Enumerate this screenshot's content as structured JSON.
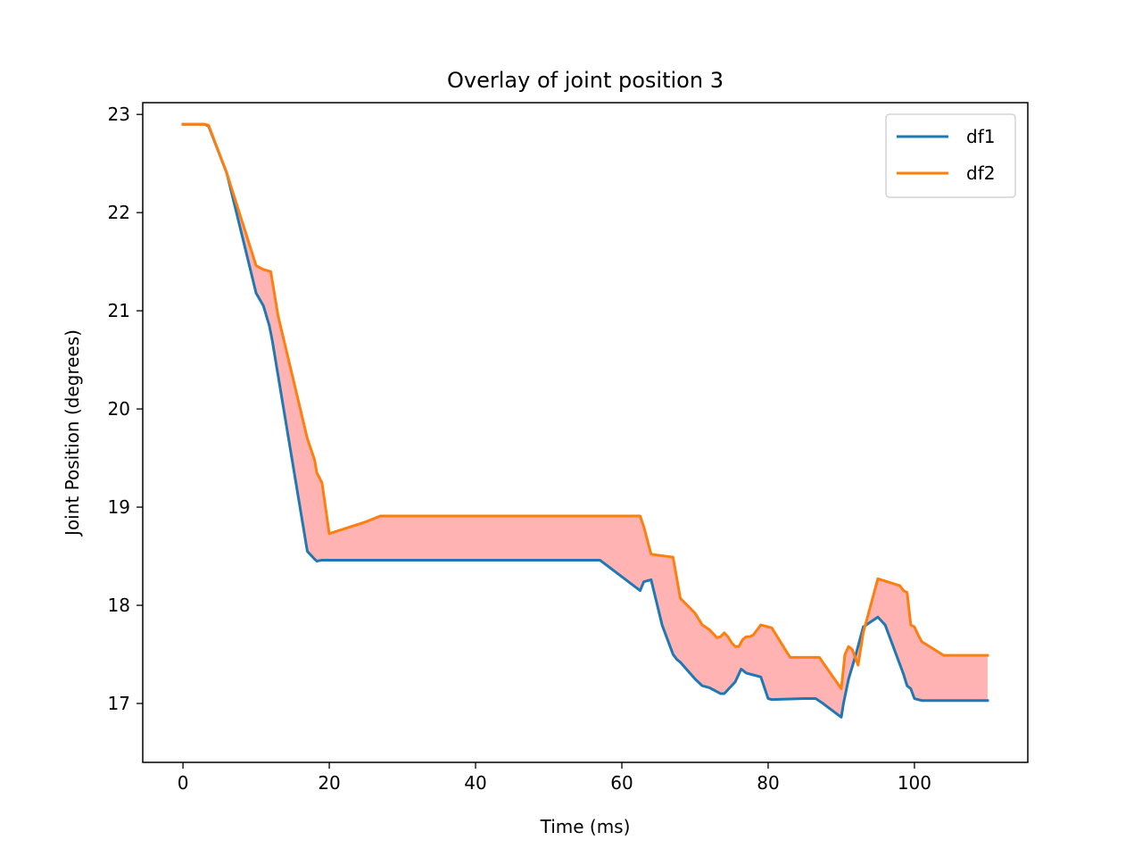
{
  "chart_data": {
    "type": "line",
    "title": "Overlay of joint position 3",
    "xlabel": "Time (ms)",
    "ylabel": "Joint Position (degrees)",
    "xlim": [
      -5.5,
      115.5
    ],
    "ylim": [
      16.4,
      23.12
    ],
    "xticks": [
      0,
      20,
      40,
      60,
      80,
      100
    ],
    "yticks": [
      17,
      18,
      19,
      20,
      21,
      22,
      23
    ],
    "grid": false,
    "legend_position": "top-right",
    "fill_between": {
      "color": "#ffb3b3",
      "between": [
        "df1",
        "df2"
      ]
    },
    "series": [
      {
        "name": "df1",
        "color": "#1f77b4",
        "x": [
          0,
          3,
          3.5,
          6,
          10,
          11,
          11.8,
          12.2,
          17,
          18,
          18.3,
          19,
          25,
          35,
          45,
          57,
          62.5,
          63,
          64,
          65.5,
          66,
          67,
          67.5,
          68,
          70,
          71,
          71.5,
          72,
          72.5,
          73,
          73.5,
          74,
          74.5,
          75,
          75.5,
          76,
          76.3,
          76.5,
          77,
          77.5,
          78,
          78.5,
          79,
          80,
          80.5,
          85,
          86,
          86.5,
          87.5,
          90,
          90.3,
          91,
          92,
          93,
          95,
          96,
          97,
          98,
          98.5,
          99,
          99.5,
          100,
          101,
          105,
          110
        ],
        "y": [
          22.9,
          22.9,
          22.88,
          22.4,
          21.18,
          21.05,
          20.85,
          20.7,
          18.55,
          18.47,
          18.45,
          18.46,
          18.46,
          18.46,
          18.46,
          18.46,
          18.15,
          18.24,
          18.26,
          17.8,
          17.7,
          17.5,
          17.45,
          17.42,
          17.25,
          17.18,
          17.17,
          17.16,
          17.14,
          17.12,
          17.1,
          17.1,
          17.14,
          17.18,
          17.22,
          17.3,
          17.35,
          17.34,
          17.31,
          17.3,
          17.29,
          17.28,
          17.27,
          17.05,
          17.04,
          17.05,
          17.05,
          17.05,
          17.0,
          16.86,
          17.0,
          17.25,
          17.5,
          17.78,
          17.88,
          17.8,
          17.6,
          17.4,
          17.3,
          17.18,
          17.15,
          17.05,
          17.03,
          17.03,
          17.03
        ]
      },
      {
        "name": "df2",
        "color": "#ff7f0e",
        "x": [
          0,
          3,
          3.5,
          6,
          10,
          11,
          12,
          13,
          17,
          18,
          18.3,
          19,
          20,
          25,
          27,
          35,
          45,
          55,
          62,
          62.5,
          63,
          64,
          66,
          67,
          68,
          70,
          71,
          72,
          73,
          73.5,
          74,
          74.5,
          75,
          75.5,
          76,
          76.5,
          77,
          77.5,
          78,
          78.5,
          79,
          80,
          80.5,
          83,
          87,
          90,
          90.5,
          91,
          91.5,
          92,
          92.3,
          93,
          95,
          98,
          98.5,
          99,
          99.5,
          100,
          100.5,
          101,
          104,
          110
        ],
        "y": [
          22.9,
          22.9,
          22.89,
          22.4,
          21.46,
          21.42,
          21.4,
          20.95,
          19.7,
          19.48,
          19.35,
          19.25,
          18.73,
          18.85,
          18.91,
          18.91,
          18.91,
          18.91,
          18.91,
          18.91,
          18.8,
          18.52,
          18.5,
          18.49,
          18.07,
          17.92,
          17.8,
          17.75,
          17.67,
          17.68,
          17.72,
          17.68,
          17.62,
          17.58,
          17.58,
          17.65,
          17.68,
          17.68,
          17.7,
          17.75,
          17.8,
          17.78,
          17.77,
          17.47,
          17.47,
          17.15,
          17.5,
          17.58,
          17.55,
          17.45,
          17.39,
          17.72,
          18.27,
          18.2,
          18.15,
          18.13,
          17.8,
          17.78,
          17.7,
          17.63,
          17.49,
          17.49
        ]
      }
    ]
  }
}
